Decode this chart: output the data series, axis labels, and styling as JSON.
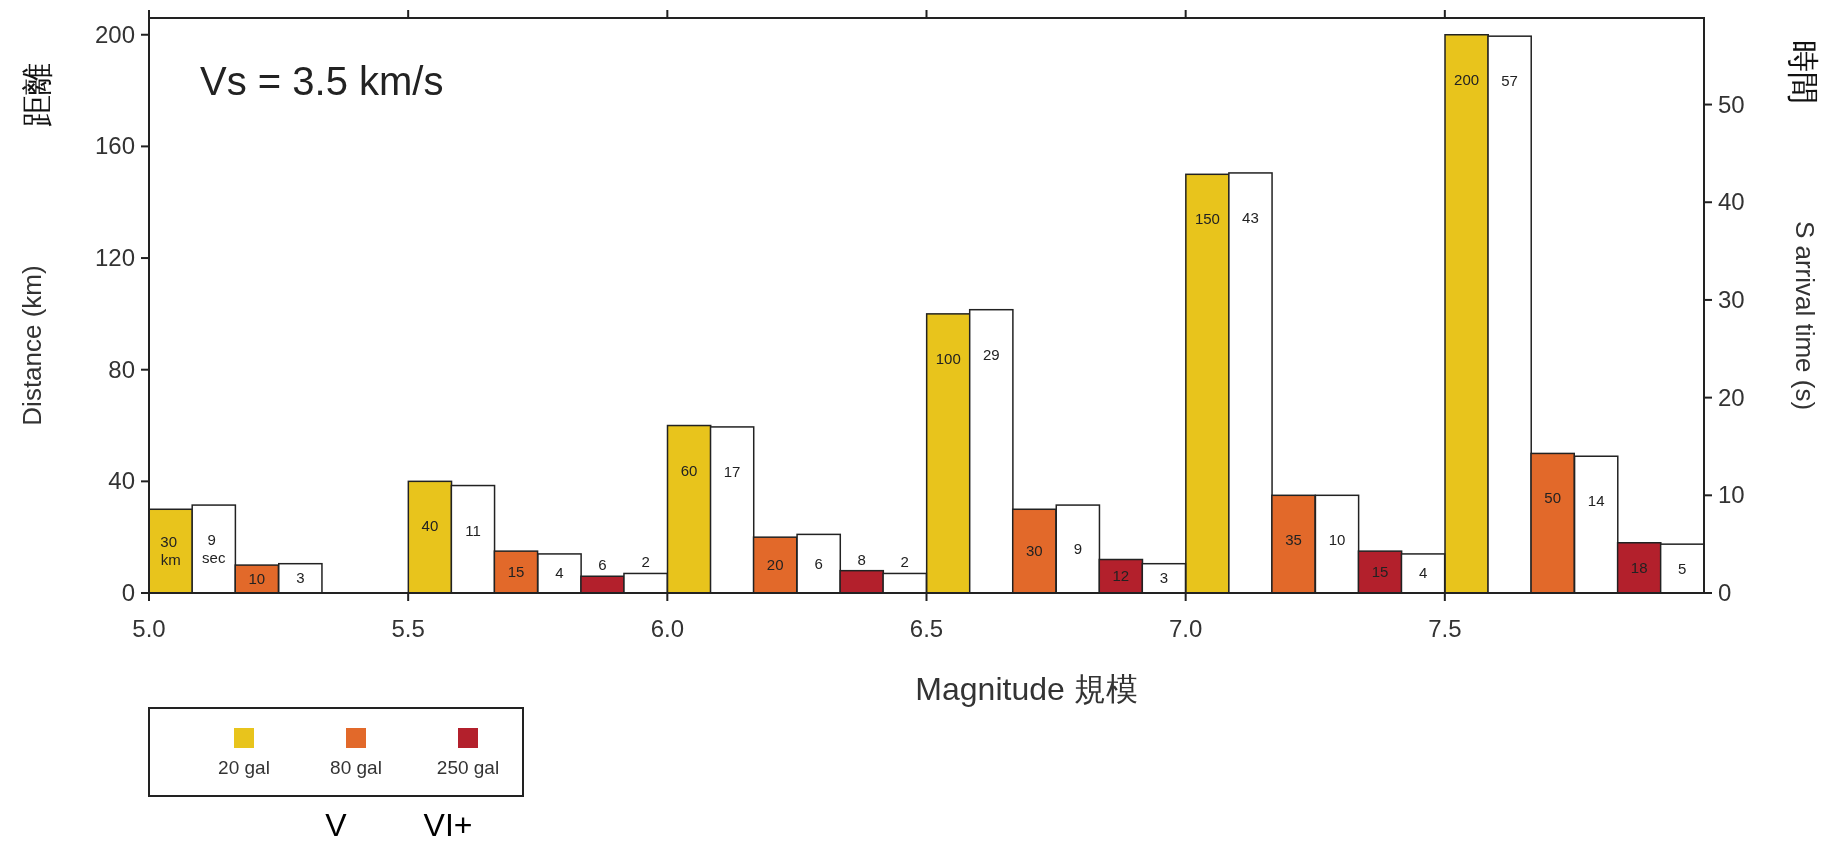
{
  "chart_data": {
    "type": "bar",
    "xlabel": "Magnitude  規模",
    "ylabel": "Distance (km)",
    "y2label": "S arrival time (s)",
    "annotations": [
      "Vs = 3.5 km/s",
      "距離",
      "時間",
      "V",
      "VI+"
    ],
    "xlim": [
      5.0,
      8.0
    ],
    "xticks": [
      {
        "value": 5.0,
        "label": "5.0"
      },
      {
        "value": 5.5,
        "label": "5.5"
      },
      {
        "value": 6.0,
        "label": "6.0"
      },
      {
        "value": 6.5,
        "label": "6.5"
      },
      {
        "value": 7.0,
        "label": "7.0"
      },
      {
        "value": 7.5,
        "label": "7.5"
      }
    ],
    "ylim": [
      0,
      206
    ],
    "yticks": [
      0,
      40,
      80,
      120,
      160,
      200
    ],
    "y2lim": [
      0,
      58.86
    ],
    "y2ticks": [
      0,
      10,
      20,
      30,
      40,
      50
    ],
    "legend": "bottom left",
    "series": [
      {
        "name": "20 gal",
        "color": "#e8c41c",
        "x": [
          5.042,
          5.542,
          6.042,
          6.542,
          7.042,
          7.542
        ],
        "values": [
          30,
          40,
          60,
          100,
          150,
          200
        ],
        "value_labels": [
          "30 km",
          "40",
          "60",
          "100",
          "150",
          "200"
        ]
      },
      {
        "color": "#ffffff",
        "axis": "y2",
        "x": [
          5.125,
          5.625,
          6.125,
          6.625,
          7.125,
          7.625
        ],
        "values": [
          9,
          11,
          17,
          29,
          43,
          57
        ],
        "value_labels": [
          "9 sec",
          "11",
          "17",
          "29",
          "43",
          "57"
        ]
      },
      {
        "name": "80 gal",
        "color": "#e2692a",
        "x": [
          5.208,
          5.708,
          6.208,
          6.708,
          7.208,
          7.708
        ],
        "values": [
          10,
          15,
          20,
          30,
          35,
          50
        ],
        "value_labels": [
          "10",
          "15",
          "20",
          "30",
          "35",
          "50"
        ]
      },
      {
        "color": "#ffffff",
        "axis": "y2",
        "x": [
          5.292,
          5.792,
          6.292,
          6.792,
          7.292,
          7.792
        ],
        "values": [
          3,
          4,
          6,
          9,
          10,
          14
        ],
        "value_labels": [
          "3",
          "4",
          "6",
          "9",
          "10",
          "14"
        ]
      },
      {
        "name": "250 gal",
        "color": "#b3202c",
        "x": [
          5.875,
          6.375,
          6.875,
          7.375,
          7.875
        ],
        "values": [
          6,
          8,
          12,
          15,
          18
        ],
        "value_labels": [
          "6",
          "8",
          "12",
          "15",
          "18"
        ]
      },
      {
        "color": "#ffffff",
        "axis": "y2",
        "x": [
          5.958,
          6.458,
          6.958,
          7.458,
          7.958
        ],
        "values": [
          2,
          2,
          3,
          4,
          5
        ],
        "value_labels": [
          "2",
          "2",
          "3",
          "4",
          "5"
        ]
      }
    ]
  }
}
